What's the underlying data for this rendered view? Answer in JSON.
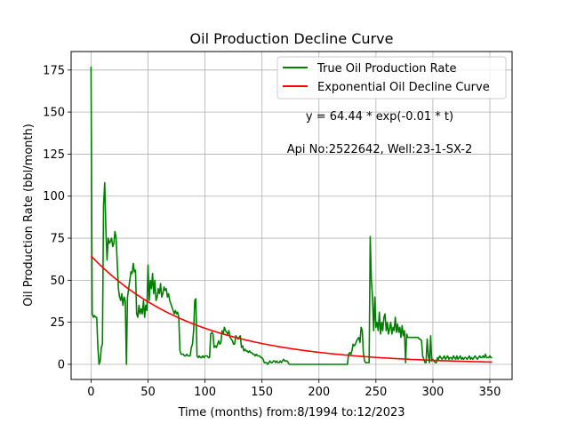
{
  "chart_data": {
    "type": "line",
    "title": "Oil Production Decline Curve",
    "xlabel": "Time (months) from:8/1994 to:12/2023",
    "ylabel": "Oil Production Rate (bbl/month)",
    "xlim": [
      -17.5,
      369.5
    ],
    "ylim": [
      -9,
      186
    ],
    "xticks": [
      0,
      50,
      100,
      150,
      200,
      250,
      300,
      350
    ],
    "yticks": [
      0,
      25,
      50,
      75,
      100,
      125,
      150,
      175
    ],
    "grid": true,
    "legend_position": "top-right",
    "annotations": [
      "y = 64.44 * exp(-0.01 * t)",
      "Api No:2522642, Well:23-1-SX-2"
    ],
    "series": [
      {
        "name": "True Oil Production Rate",
        "color": "#008000",
        "points": [
          [
            0,
            177
          ],
          [
            1,
            30
          ],
          [
            2,
            28
          ],
          [
            3,
            29
          ],
          [
            4,
            28
          ],
          [
            5,
            28
          ],
          [
            6,
            10
          ],
          [
            7,
            0
          ],
          [
            8,
            2
          ],
          [
            9,
            10
          ],
          [
            10,
            12
          ],
          [
            11,
            95
          ],
          [
            12,
            108
          ],
          [
            13,
            80
          ],
          [
            14,
            62
          ],
          [
            15,
            75
          ],
          [
            16,
            72
          ],
          [
            17,
            73
          ],
          [
            18,
            75
          ],
          [
            19,
            70
          ],
          [
            20,
            72
          ],
          [
            21,
            79
          ],
          [
            22,
            75
          ],
          [
            23,
            60
          ],
          [
            24,
            45
          ],
          [
            25,
            40
          ],
          [
            26,
            38
          ],
          [
            27,
            42
          ],
          [
            28,
            35
          ],
          [
            29,
            40
          ],
          [
            30,
            38
          ],
          [
            31,
            0
          ],
          [
            32,
            40
          ],
          [
            33,
            45
          ],
          [
            34,
            50
          ],
          [
            35,
            55
          ],
          [
            36,
            54
          ],
          [
            37,
            60
          ],
          [
            38,
            55
          ],
          [
            39,
            56
          ],
          [
            40,
            30
          ],
          [
            41,
            28
          ],
          [
            42,
            35
          ],
          [
            43,
            30
          ],
          [
            44,
            33
          ],
          [
            45,
            30
          ],
          [
            46,
            38
          ],
          [
            47,
            28
          ],
          [
            48,
            35
          ],
          [
            49,
            32
          ],
          [
            50,
            59
          ],
          [
            51,
            38
          ],
          [
            52,
            50
          ],
          [
            53,
            45
          ],
          [
            54,
            54
          ],
          [
            55,
            42
          ],
          [
            56,
            50
          ],
          [
            57,
            38
          ],
          [
            58,
            40
          ],
          [
            59,
            45
          ],
          [
            60,
            42
          ],
          [
            61,
            48
          ],
          [
            62,
            40
          ],
          [
            63,
            42
          ],
          [
            64,
            46
          ],
          [
            65,
            44
          ],
          [
            66,
            45
          ],
          [
            67,
            40
          ],
          [
            68,
            42
          ],
          [
            69,
            38
          ],
          [
            70,
            36
          ],
          [
            71,
            34
          ],
          [
            72,
            32
          ],
          [
            73,
            30
          ],
          [
            74,
            32
          ],
          [
            75,
            30
          ],
          [
            76,
            31
          ],
          [
            77,
            28
          ],
          [
            78,
            8
          ],
          [
            79,
            6
          ],
          [
            80,
            6
          ],
          [
            81,
            6
          ],
          [
            82,
            5
          ],
          [
            83,
            5
          ],
          [
            84,
            6
          ],
          [
            85,
            5
          ],
          [
            86,
            5
          ],
          [
            87,
            5
          ],
          [
            88,
            10
          ],
          [
            89,
            12
          ],
          [
            90,
            20
          ],
          [
            91,
            38
          ],
          [
            92,
            39
          ],
          [
            93,
            5
          ],
          [
            94,
            4
          ],
          [
            95,
            5
          ],
          [
            96,
            4
          ],
          [
            97,
            4
          ],
          [
            98,
            5
          ],
          [
            99,
            4
          ],
          [
            100,
            5
          ],
          [
            101,
            5
          ],
          [
            102,
            5
          ],
          [
            103,
            4
          ],
          [
            104,
            4
          ],
          [
            105,
            18
          ],
          [
            106,
            19
          ],
          [
            107,
            18
          ],
          [
            108,
            10
          ],
          [
            109,
            11
          ],
          [
            110,
            10
          ],
          [
            111,
            12
          ],
          [
            112,
            14
          ],
          [
            113,
            12
          ],
          [
            114,
            13
          ],
          [
            115,
            20
          ],
          [
            116,
            18
          ],
          [
            117,
            22
          ],
          [
            118,
            20
          ],
          [
            119,
            19
          ],
          [
            120,
            18
          ],
          [
            121,
            20
          ],
          [
            122,
            16
          ],
          [
            123,
            15
          ],
          [
            124,
            14
          ],
          [
            125,
            12
          ],
          [
            126,
            12
          ],
          [
            127,
            17
          ],
          [
            128,
            16
          ],
          [
            129,
            15
          ],
          [
            130,
            16
          ],
          [
            131,
            17
          ],
          [
            132,
            10
          ],
          [
            133,
            11
          ],
          [
            134,
            8
          ],
          [
            135,
            9
          ],
          [
            136,
            8
          ],
          [
            137,
            8
          ],
          [
            138,
            7
          ],
          [
            139,
            8
          ],
          [
            140,
            7
          ],
          [
            141,
            7
          ],
          [
            142,
            6
          ],
          [
            143,
            6
          ],
          [
            144,
            5
          ],
          [
            145,
            6
          ],
          [
            146,
            5
          ],
          [
            147,
            5
          ],
          [
            148,
            5
          ],
          [
            149,
            4
          ],
          [
            150,
            4
          ],
          [
            151,
            3
          ],
          [
            152,
            1
          ],
          [
            153,
            1
          ],
          [
            154,
            1
          ],
          [
            155,
            0
          ],
          [
            156,
            1
          ],
          [
            157,
            2
          ],
          [
            158,
            1
          ],
          [
            159,
            1
          ],
          [
            160,
            2
          ],
          [
            161,
            2
          ],
          [
            162,
            1
          ],
          [
            163,
            2
          ],
          [
            164,
            1
          ],
          [
            165,
            1
          ],
          [
            166,
            2
          ],
          [
            167,
            1
          ],
          [
            168,
            2
          ],
          [
            169,
            3
          ],
          [
            170,
            2
          ],
          [
            171,
            2
          ],
          [
            172,
            2
          ],
          [
            173,
            1
          ],
          [
            174,
            0
          ],
          [
            175,
            0
          ],
          [
            180,
            0
          ],
          [
            185,
            0
          ],
          [
            190,
            0
          ],
          [
            195,
            0
          ],
          [
            200,
            0
          ],
          [
            205,
            0
          ],
          [
            210,
            0
          ],
          [
            215,
            0
          ],
          [
            220,
            0
          ],
          [
            225,
            0
          ],
          [
            226,
            6
          ],
          [
            227,
            7
          ],
          [
            228,
            6
          ],
          [
            229,
            8
          ],
          [
            230,
            12
          ],
          [
            231,
            11
          ],
          [
            232,
            12
          ],
          [
            233,
            14
          ],
          [
            234,
            15
          ],
          [
            235,
            16
          ],
          [
            236,
            13
          ],
          [
            237,
            22
          ],
          [
            238,
            20
          ],
          [
            239,
            7
          ],
          [
            240,
            2
          ],
          [
            241,
            1
          ],
          [
            242,
            1
          ],
          [
            243,
            1
          ],
          [
            244,
            1
          ],
          [
            245,
            76
          ],
          [
            246,
            50
          ],
          [
            247,
            40
          ],
          [
            248,
            20
          ],
          [
            249,
            40
          ],
          [
            250,
            22
          ],
          [
            251,
            25
          ],
          [
            252,
            20
          ],
          [
            253,
            31
          ],
          [
            254,
            18
          ],
          [
            255,
            25
          ],
          [
            256,
            20
          ],
          [
            257,
            28
          ],
          [
            258,
            30
          ],
          [
            259,
            20
          ],
          [
            260,
            25
          ],
          [
            261,
            18
          ],
          [
            262,
            21
          ],
          [
            263,
            25
          ],
          [
            264,
            18
          ],
          [
            265,
            22
          ],
          [
            266,
            20
          ],
          [
            267,
            28
          ],
          [
            268,
            19
          ],
          [
            269,
            24
          ],
          [
            270,
            19
          ],
          [
            271,
            22
          ],
          [
            272,
            16
          ],
          [
            273,
            23
          ],
          [
            274,
            17
          ],
          [
            275,
            20
          ],
          [
            276,
            1
          ],
          [
            277,
            18
          ],
          [
            278,
            16
          ],
          [
            279,
            16
          ],
          [
            280,
            16
          ],
          [
            281,
            16
          ],
          [
            282,
            16
          ],
          [
            283,
            16
          ],
          [
            284,
            16
          ],
          [
            285,
            16
          ],
          [
            286,
            16
          ],
          [
            287,
            16
          ],
          [
            288,
            15
          ],
          [
            289,
            15
          ],
          [
            290,
            14
          ],
          [
            291,
            5
          ],
          [
            292,
            3
          ],
          [
            293,
            1
          ],
          [
            294,
            1
          ],
          [
            295,
            15
          ],
          [
            296,
            5
          ],
          [
            297,
            1
          ],
          [
            298,
            17
          ],
          [
            299,
            2
          ],
          [
            300,
            3
          ],
          [
            301,
            2
          ],
          [
            302,
            1
          ],
          [
            303,
            1
          ],
          [
            304,
            4
          ],
          [
            305,
            3
          ],
          [
            306,
            5
          ],
          [
            307,
            4
          ],
          [
            308,
            3
          ],
          [
            309,
            4
          ],
          [
            310,
            5
          ],
          [
            311,
            3
          ],
          [
            312,
            4
          ],
          [
            313,
            5
          ],
          [
            314,
            3
          ],
          [
            315,
            4
          ],
          [
            316,
            4
          ],
          [
            317,
            3
          ],
          [
            318,
            5
          ],
          [
            319,
            4
          ],
          [
            320,
            3
          ],
          [
            321,
            5
          ],
          [
            322,
            3
          ],
          [
            323,
            4
          ],
          [
            324,
            5
          ],
          [
            325,
            3
          ],
          [
            326,
            4
          ],
          [
            327,
            3
          ],
          [
            328,
            4
          ],
          [
            329,
            4
          ],
          [
            330,
            3
          ],
          [
            331,
            4
          ],
          [
            332,
            5
          ],
          [
            333,
            3
          ],
          [
            334,
            4
          ],
          [
            335,
            3
          ],
          [
            336,
            4
          ],
          [
            337,
            5
          ],
          [
            338,
            4
          ],
          [
            339,
            3
          ],
          [
            340,
            4
          ],
          [
            341,
            5
          ],
          [
            342,
            4
          ],
          [
            343,
            4
          ],
          [
            344,
            5
          ],
          [
            345,
            4
          ],
          [
            346,
            6
          ],
          [
            347,
            4
          ],
          [
            348,
            4
          ],
          [
            349,
            4
          ],
          [
            350,
            5
          ],
          [
            351,
            4
          ],
          [
            352,
            4
          ]
        ]
      },
      {
        "name": "Exponential Oil Decline Curve",
        "color": "#ff0000",
        "model": {
          "a": 64.44,
          "b": 0.011,
          "t_start": 0,
          "t_end": 352
        }
      }
    ]
  }
}
